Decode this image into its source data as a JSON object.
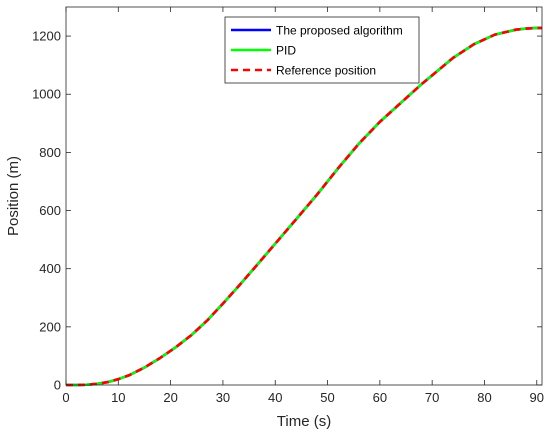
{
  "chart_data": {
    "type": "line",
    "xlabel": "Time (s)",
    "ylabel": "Position (m)",
    "xlim": [
      0,
      91
    ],
    "ylim": [
      0,
      1300
    ],
    "xticks": [
      0,
      10,
      20,
      30,
      40,
      50,
      60,
      70,
      80,
      90
    ],
    "yticks": [
      0,
      200,
      400,
      600,
      800,
      1000,
      1200
    ],
    "grid": false,
    "legend_position": "top-right",
    "series": [
      {
        "name": "The proposed algorithm",
        "color": "#0000ff",
        "style": "solid",
        "x": [
          0,
          2,
          4,
          6,
          8,
          10,
          12,
          15,
          18,
          21,
          24,
          27,
          30,
          33,
          36,
          40,
          44,
          48,
          52,
          56,
          60,
          64,
          68,
          70,
          74,
          78,
          82,
          86,
          88,
          90,
          91
        ],
        "y": [
          0,
          0,
          1,
          4,
          10,
          20,
          33,
          60,
          93,
          130,
          172,
          222,
          280,
          340,
          402,
          486,
          570,
          655,
          745,
          830,
          905,
          970,
          1035,
          1065,
          1125,
          1172,
          1205,
          1222,
          1226,
          1228,
          1228
        ]
      },
      {
        "name": "PID",
        "color": "#00ff00",
        "style": "solid",
        "x": [
          0,
          2,
          4,
          6,
          8,
          10,
          12,
          15,
          18,
          21,
          24,
          27,
          30,
          33,
          36,
          40,
          44,
          48,
          52,
          56,
          60,
          64,
          68,
          70,
          74,
          78,
          82,
          86,
          88,
          90,
          91
        ],
        "y": [
          0,
          0,
          1,
          4,
          10,
          20,
          33,
          60,
          93,
          130,
          172,
          222,
          280,
          340,
          402,
          486,
          570,
          655,
          745,
          830,
          905,
          970,
          1035,
          1065,
          1125,
          1172,
          1205,
          1222,
          1226,
          1228,
          1228
        ]
      },
      {
        "name": "Reference position",
        "color": "#ff0000",
        "style": "dashed",
        "x": [
          0,
          2,
          4,
          6,
          8,
          10,
          12,
          15,
          18,
          21,
          24,
          27,
          30,
          33,
          36,
          40,
          44,
          48,
          52,
          56,
          60,
          64,
          68,
          70,
          74,
          78,
          82,
          86,
          88,
          90,
          91
        ],
        "y": [
          0,
          0,
          1,
          4,
          10,
          20,
          33,
          60,
          93,
          130,
          172,
          222,
          280,
          340,
          402,
          486,
          570,
          655,
          745,
          830,
          905,
          970,
          1035,
          1065,
          1125,
          1172,
          1205,
          1222,
          1226,
          1228,
          1228
        ]
      }
    ]
  }
}
